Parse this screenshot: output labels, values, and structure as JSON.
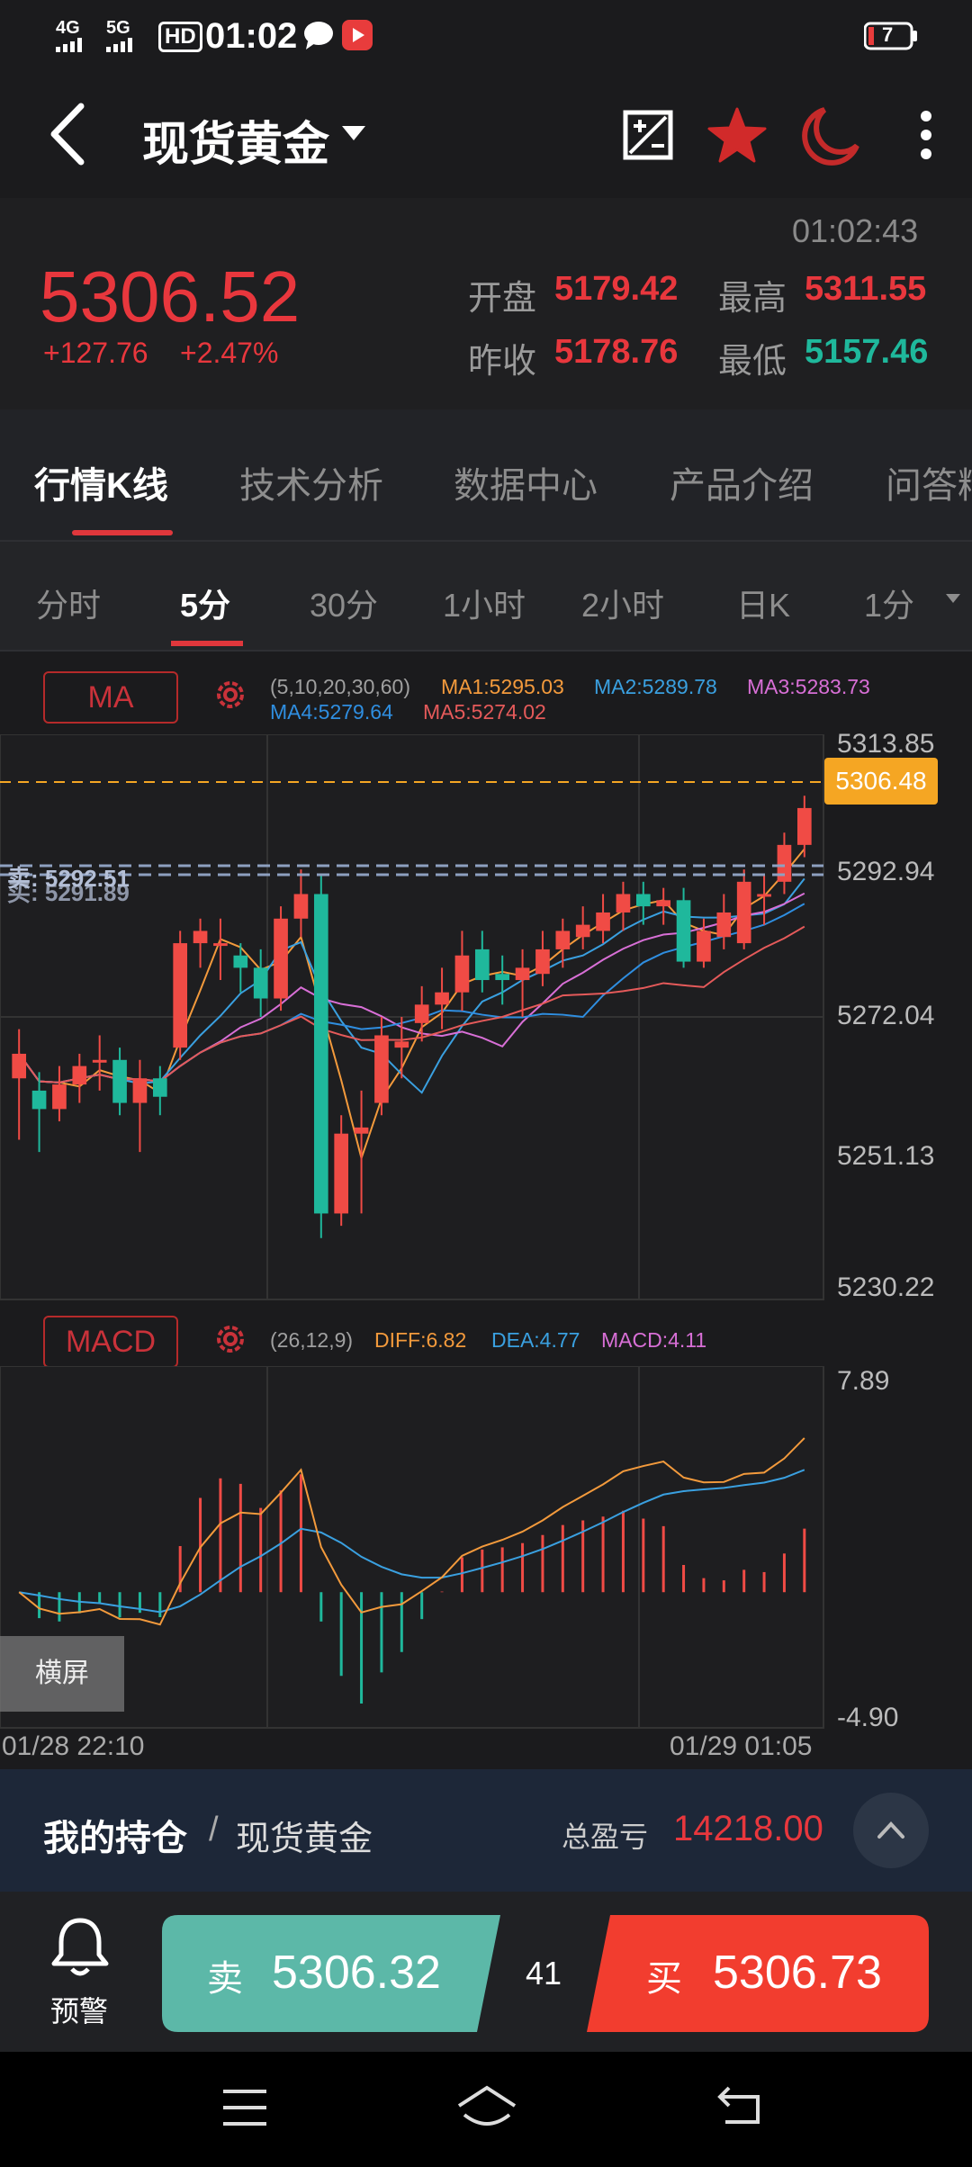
{
  "status": {
    "net1": "4G",
    "net2": "5G",
    "hd": "HD",
    "time": "01:02",
    "battery": "7"
  },
  "header": {
    "title": "现货黄金",
    "icons": [
      "back-icon",
      "chart-edit-icon",
      "star-icon",
      "moon-icon",
      "more-icon"
    ]
  },
  "quote": {
    "timestamp": "01:02:43",
    "price": "5306.52",
    "change": "+127.76",
    "change_pct": "+2.47%",
    "open_label": "开盘",
    "open": "5179.42",
    "high_label": "最高",
    "high": "5311.55",
    "prev_close_label": "昨收",
    "prev_close": "5178.76",
    "low_label": "最低",
    "low": "5157.46"
  },
  "tabs": [
    {
      "label": "行情K线",
      "active": true
    },
    {
      "label": "技术分析"
    },
    {
      "label": "数据中心"
    },
    {
      "label": "产品介绍"
    },
    {
      "label": "问答精"
    }
  ],
  "periods": [
    {
      "label": "分时"
    },
    {
      "label": "5分",
      "active": true
    },
    {
      "label": "30分"
    },
    {
      "label": "1小时"
    },
    {
      "label": "2小时"
    },
    {
      "label": "日K"
    },
    {
      "label": "1分"
    }
  ],
  "ma": {
    "badge": "MA",
    "params": "(5,10,20,30,60)",
    "ma1": "MA1:5295.03",
    "ma2": "MA2:5289.78",
    "ma3": "MA3:5283.73",
    "ma4": "MA4:5279.64",
    "ma5": "MA5:5274.02",
    "sell_overlay": "卖: 5292.51",
    "buy_overlay": "买: 5291.89",
    "y_labels": [
      "5313.85",
      "5292.94",
      "5272.04",
      "5251.13",
      "5230.22"
    ],
    "current_price_tag": "5306.48"
  },
  "macd": {
    "badge": "MACD",
    "params": "(26,12,9)",
    "diff": "DIFF:6.82",
    "dea": "DEA:4.77",
    "macd": "MACD:4.11",
    "y_top": "7.89",
    "y_bottom": "-4.90",
    "landscape": "横屏"
  },
  "x_axis": {
    "start": "01/28 22:10",
    "end": "01/29 01:05"
  },
  "colors": {
    "up": "#f04b45",
    "down": "#1fb89c",
    "ma1": "#f39a3c",
    "ma2": "#3aa0e0",
    "ma3": "#d86fd6",
    "ma4": "#2f8ee0",
    "ma5": "#e55a5a",
    "price_tag": "#f5a623"
  },
  "position": {
    "title": "我的持仓",
    "sep": "/",
    "product": "现货黄金",
    "pnl_label": "总盈亏",
    "pnl": "14218.00"
  },
  "trade": {
    "alert_label": "预警",
    "sell_label": "卖",
    "sell_price": "5306.32",
    "spread": "41",
    "buy_label": "买",
    "buy_price": "5306.73"
  },
  "chart_data": {
    "type": "candlestick",
    "price_axis": [
      5230.22,
      5251.13,
      5272.04,
      5292.94,
      5313.85
    ],
    "x_start": "01/28 22:10",
    "x_end": "01/29 01:05",
    "candles": [
      {
        "o": 5262,
        "c": 5266,
        "h": 5270,
        "l": 5252
      },
      {
        "o": 5260,
        "c": 5257,
        "h": 5263,
        "l": 5250
      },
      {
        "o": 5257,
        "c": 5261,
        "h": 5264,
        "l": 5255
      },
      {
        "o": 5261,
        "c": 5264,
        "h": 5266,
        "l": 5258
      },
      {
        "o": 5265,
        "c": 5265,
        "h": 5269,
        "l": 5260
      },
      {
        "o": 5265,
        "c": 5258,
        "h": 5267,
        "l": 5256
      },
      {
        "o": 5258,
        "c": 5262,
        "h": 5265,
        "l": 5250
      },
      {
        "o": 5262,
        "c": 5259,
        "h": 5264,
        "l": 5256
      },
      {
        "o": 5267,
        "c": 5284,
        "h": 5286,
        "l": 5265
      },
      {
        "o": 5284,
        "c": 5286,
        "h": 5288,
        "l": 5280
      },
      {
        "o": 5284,
        "c": 5284,
        "h": 5288,
        "l": 5278
      },
      {
        "o": 5282,
        "c": 5280,
        "h": 5284,
        "l": 5276
      },
      {
        "o": 5280,
        "c": 5275,
        "h": 5283,
        "l": 5272
      },
      {
        "o": 5275,
        "c": 5288,
        "h": 5290,
        "l": 5273
      },
      {
        "o": 5288,
        "c": 5292,
        "h": 5296,
        "l": 5285
      },
      {
        "o": 5292,
        "c": 5240,
        "h": 5295,
        "l": 5236
      },
      {
        "o": 5240,
        "c": 5253,
        "h": 5256,
        "l": 5238
      },
      {
        "o": 5253,
        "c": 5254,
        "h": 5260,
        "l": 5240
      },
      {
        "o": 5258,
        "c": 5269,
        "h": 5272,
        "l": 5256
      },
      {
        "o": 5267,
        "c": 5268,
        "h": 5272,
        "l": 5262
      },
      {
        "o": 5271,
        "c": 5274,
        "h": 5277,
        "l": 5268
      },
      {
        "o": 5274,
        "c": 5276,
        "h": 5280,
        "l": 5270
      },
      {
        "o": 5276,
        "c": 5282,
        "h": 5286,
        "l": 5273
      },
      {
        "o": 5283,
        "c": 5278,
        "h": 5286,
        "l": 5276
      },
      {
        "o": 5279,
        "c": 5278,
        "h": 5282,
        "l": 5274
      },
      {
        "o": 5278,
        "c": 5280,
        "h": 5283,
        "l": 5272
      },
      {
        "o": 5279,
        "c": 5283,
        "h": 5286,
        "l": 5277
      },
      {
        "o": 5283,
        "c": 5286,
        "h": 5288,
        "l": 5280
      },
      {
        "o": 5285,
        "c": 5287,
        "h": 5290,
        "l": 5283
      },
      {
        "o": 5286,
        "c": 5289,
        "h": 5292,
        "l": 5284
      },
      {
        "o": 5289,
        "c": 5292,
        "h": 5294,
        "l": 5286
      },
      {
        "o": 5292,
        "c": 5290,
        "h": 5294,
        "l": 5287
      },
      {
        "o": 5290,
        "c": 5291,
        "h": 5293,
        "l": 5287
      },
      {
        "o": 5291,
        "c": 5281,
        "h": 5293,
        "l": 5280
      },
      {
        "o": 5281,
        "c": 5286,
        "h": 5288,
        "l": 5280
      },
      {
        "o": 5285,
        "c": 5289,
        "h": 5292,
        "l": 5283
      },
      {
        "o": 5284,
        "c": 5294,
        "h": 5296,
        "l": 5283
      },
      {
        "o": 5292,
        "c": 5292,
        "h": 5295,
        "l": 5287
      },
      {
        "o": 5294,
        "c": 5300,
        "h": 5302,
        "l": 5292
      },
      {
        "o": 5300,
        "c": 5306,
        "h": 5308,
        "l": 5298
      }
    ],
    "macd_axis": [
      -4.9,
      7.89
    ]
  }
}
